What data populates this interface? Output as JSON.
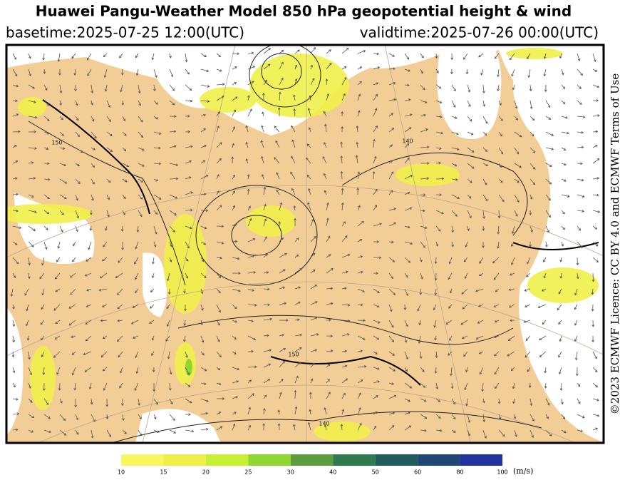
{
  "header": {
    "title": "Huawei Pangu-Weather Model 850 hPa geopotential height & wind",
    "basetime": "basetime:2025-07-25 12:00(UTC)",
    "validtime": "validtime:2025-07-26 00:00(UTC)"
  },
  "credit": "©2023 ECMWF Licence: CC BY 4.0 and ECMWF Terms of Use",
  "map": {
    "contour_labels": [
      "150",
      "140",
      "140",
      "150"
    ]
  },
  "colorbar": {
    "ticks": [
      10,
      15,
      20,
      25,
      30,
      40,
      50,
      60,
      80,
      100
    ],
    "colors": [
      "#f7f75e",
      "#eef048",
      "#c8f032",
      "#8ed630",
      "#5c9e3c",
      "#2f7a4e",
      "#1e5c5e",
      "#1f4778",
      "#2233a0"
    ],
    "unit": "(m/s)"
  }
}
